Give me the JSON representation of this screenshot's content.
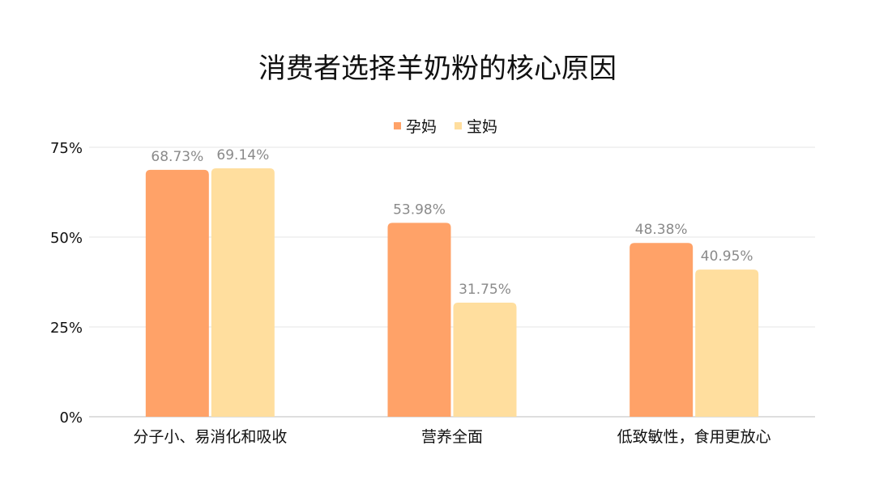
{
  "chart_data": {
    "type": "bar",
    "title": "消费者选择羊奶粉的核心原因",
    "categories": [
      "分子小、易消化和吸收",
      "营养全面",
      "低致敏性，食用更放心"
    ],
    "series": [
      {
        "name": "孕妈",
        "values": [
          68.73,
          53.98,
          48.38
        ],
        "labels": [
          "68.73%",
          "53.98%",
          "48.38%"
        ],
        "color": "#FFA268"
      },
      {
        "name": "宝妈",
        "values": [
          69.14,
          31.75,
          40.95
        ],
        "labels": [
          "69.14%",
          "31.75%",
          "40.95%"
        ],
        "color": "#FFDE9E"
      }
    ],
    "ylim": [
      0,
      75
    ],
    "yticks": [
      0,
      25,
      50,
      75
    ],
    "ytick_labels": [
      "0%",
      "25%",
      "50%",
      "75%"
    ],
    "xlabel": "",
    "ylabel": "",
    "grid": true,
    "legend_position": "top"
  }
}
